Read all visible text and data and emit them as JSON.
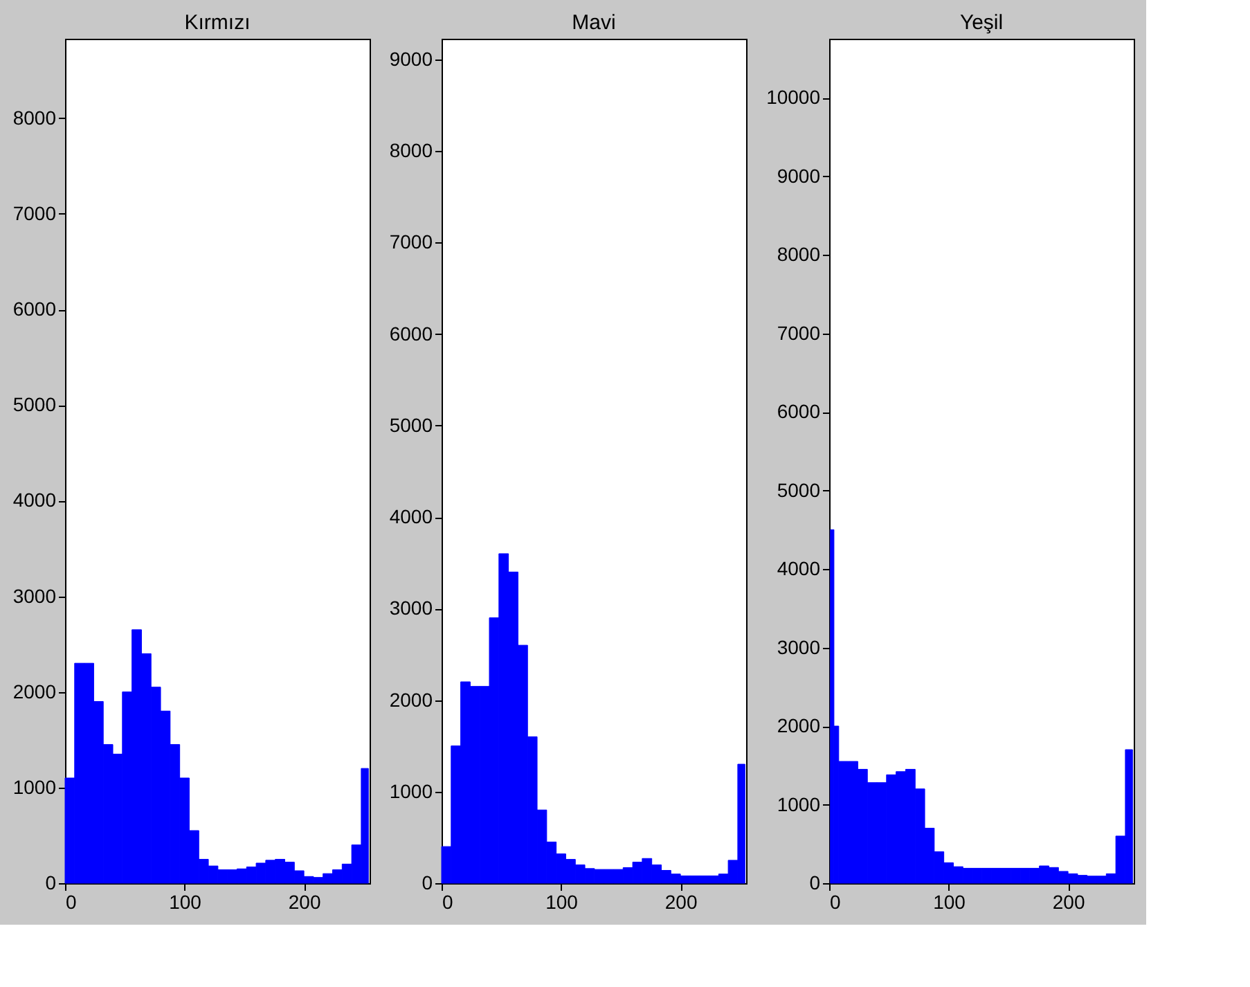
{
  "chart_data": [
    {
      "type": "histogram",
      "title": "Kırmızı",
      "color": "#0000ff",
      "xlim": [
        0,
        255
      ],
      "xticks": [
        0,
        100,
        200
      ],
      "ylim": [
        0,
        8830
      ],
      "yticks": [
        0,
        1000,
        2000,
        3000,
        4000,
        5000,
        6000,
        7000,
        8000
      ],
      "bins": [
        0,
        8,
        16,
        24,
        32,
        40,
        48,
        56,
        64,
        72,
        80,
        88,
        96,
        104,
        112,
        120,
        128,
        136,
        144,
        152,
        160,
        168,
        176,
        184,
        192,
        200,
        208,
        216,
        224,
        232,
        240,
        248,
        254
      ],
      "values": [
        1100,
        2300,
        2300,
        1900,
        1450,
        1350,
        2000,
        2650,
        2400,
        2050,
        1800,
        1450,
        1100,
        550,
        250,
        180,
        140,
        140,
        150,
        170,
        210,
        240,
        250,
        220,
        130,
        70,
        60,
        100,
        140,
        200,
        400,
        1200
      ]
    },
    {
      "type": "histogram",
      "title": "Mavi",
      "color": "#0000ff",
      "xlim": [
        0,
        255
      ],
      "xticks": [
        0,
        100,
        200
      ],
      "ylim": [
        0,
        9226
      ],
      "yticks": [
        0,
        1000,
        2000,
        3000,
        4000,
        5000,
        6000,
        7000,
        8000,
        9000
      ],
      "bins": [
        0,
        8,
        16,
        24,
        32,
        40,
        48,
        56,
        64,
        72,
        80,
        88,
        96,
        104,
        112,
        120,
        128,
        136,
        144,
        152,
        160,
        168,
        176,
        184,
        192,
        200,
        208,
        216,
        224,
        232,
        240,
        248,
        254
      ],
      "values": [
        400,
        1500,
        2200,
        2150,
        2150,
        2900,
        3600,
        3400,
        2600,
        1600,
        800,
        450,
        320,
        260,
        200,
        160,
        150,
        150,
        150,
        170,
        230,
        270,
        200,
        140,
        100,
        80,
        80,
        80,
        80,
        100,
        250,
        1300
      ]
    },
    {
      "type": "histogram",
      "title": "Yeşil",
      "color": "#0000ff",
      "xlim": [
        0,
        255
      ],
      "xticks": [
        0,
        100,
        200
      ],
      "ylim": [
        0,
        10750
      ],
      "yticks": [
        0,
        1000,
        2000,
        3000,
        4000,
        5000,
        6000,
        7000,
        8000,
        9000,
        10000
      ],
      "bins": [
        1,
        4,
        8,
        16,
        24,
        32,
        40,
        48,
        56,
        64,
        72,
        80,
        88,
        96,
        104,
        112,
        120,
        128,
        136,
        144,
        152,
        160,
        168,
        176,
        184,
        192,
        200,
        208,
        216,
        224,
        232,
        240,
        248,
        254
      ],
      "values": [
        4500,
        2000,
        1550,
        1550,
        1450,
        1280,
        1280,
        1380,
        1420,
        1450,
        1200,
        700,
        400,
        260,
        210,
        190,
        190,
        190,
        190,
        190,
        190,
        190,
        190,
        220,
        200,
        150,
        120,
        100,
        90,
        90,
        120,
        600,
        1700
      ]
    }
  ]
}
